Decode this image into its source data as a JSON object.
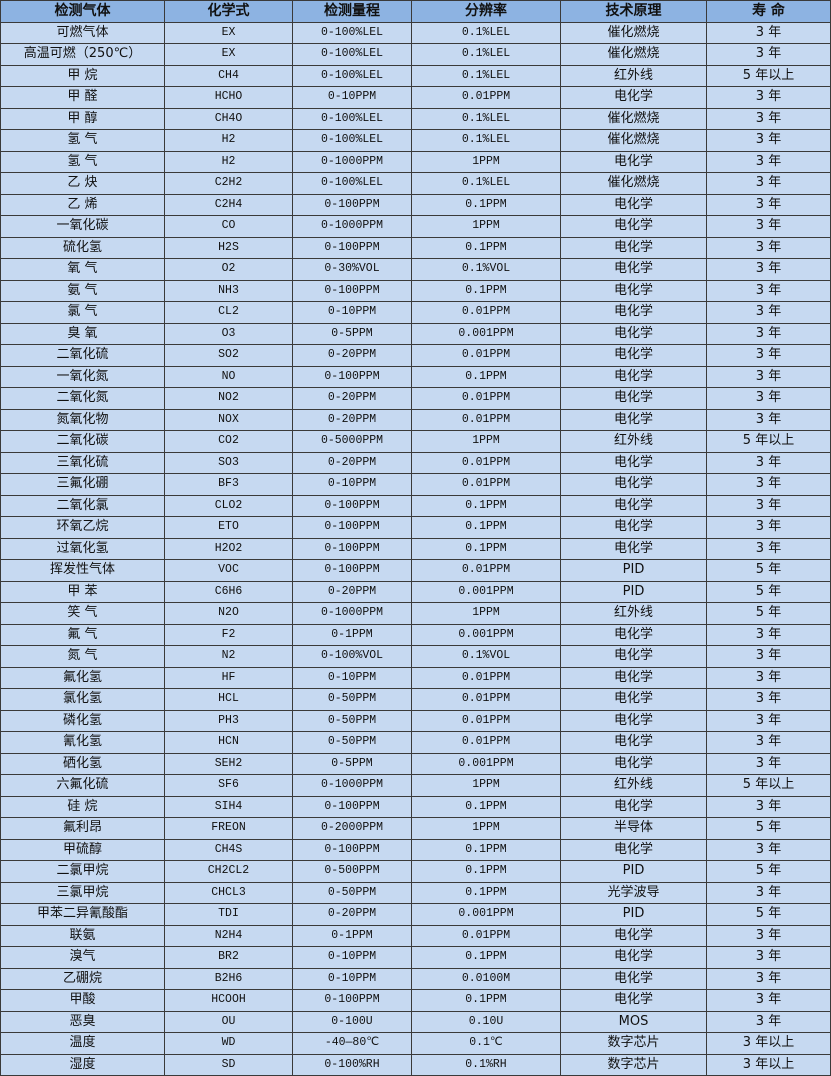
{
  "headers": [
    "检测气体",
    "化学式",
    "检测量程",
    "分辨率",
    "技术原理",
    "寿 命"
  ],
  "rows": [
    [
      "可燃气体",
      "EX",
      "0-100%LEL",
      "0.1%LEL",
      "催化燃烧",
      "3 年"
    ],
    [
      "高温可燃（250℃）",
      "EX",
      "0-100%LEL",
      "0.1%LEL",
      "催化燃烧",
      "3 年"
    ],
    [
      "甲 烷",
      "CH4",
      "0-100%LEL",
      "0.1%LEL",
      "红外线",
      "5 年以上"
    ],
    [
      "甲 醛",
      "HCHO",
      "0-10PPM",
      "0.01PPM",
      "电化学",
      "3 年"
    ],
    [
      "甲 醇",
      "CH4O",
      "0-100%LEL",
      "0.1%LEL",
      "催化燃烧",
      "3 年"
    ],
    [
      "氢 气",
      "H2",
      "0-100%LEL",
      "0.1%LEL",
      "催化燃烧",
      "3 年"
    ],
    [
      "氢 气",
      "H2",
      "0-1000PPM",
      "1PPM",
      "电化学",
      "3 年"
    ],
    [
      "乙 炔",
      "C2H2",
      "0-100%LEL",
      "0.1%LEL",
      "催化燃烧",
      "3 年"
    ],
    [
      "乙 烯",
      "C2H4",
      "0-100PPM",
      "0.1PPM",
      "电化学",
      "3 年"
    ],
    [
      "一氧化碳",
      "CO",
      "0-1000PPM",
      "1PPM",
      "电化学",
      "3 年"
    ],
    [
      "硫化氢",
      "H2S",
      "0-100PPM",
      "0.1PPM",
      "电化学",
      "3 年"
    ],
    [
      "氧 气",
      "O2",
      "0-30%VOL",
      "0.1%VOL",
      "电化学",
      "3 年"
    ],
    [
      "氨 气",
      "NH3",
      "0-100PPM",
      "0.1PPM",
      "电化学",
      "3 年"
    ],
    [
      "氯 气",
      "CL2",
      "0-10PPM",
      "0.01PPM",
      "电化学",
      "3 年"
    ],
    [
      "臭 氧",
      "O3",
      "0-5PPM",
      "0.001PPM",
      "电化学",
      "3 年"
    ],
    [
      "二氧化硫",
      "SO2",
      "0-20PPM",
      "0.01PPM",
      "电化学",
      "3 年"
    ],
    [
      "一氧化氮",
      "NO",
      "0-100PPM",
      "0.1PPM",
      "电化学",
      "3 年"
    ],
    [
      "二氧化氮",
      "NO2",
      "0-20PPM",
      "0.01PPM",
      "电化学",
      "3 年"
    ],
    [
      "氮氧化物",
      "NOX",
      "0-20PPM",
      "0.01PPM",
      "电化学",
      "3 年"
    ],
    [
      "二氧化碳",
      "CO2",
      "0-5000PPM",
      "1PPM",
      "红外线",
      "5 年以上"
    ],
    [
      "三氧化硫",
      "SO3",
      "0-20PPM",
      "0.01PPM",
      "电化学",
      "3 年"
    ],
    [
      "三氟化硼",
      "BF3",
      "0-10PPM",
      "0.01PPM",
      "电化学",
      "3 年"
    ],
    [
      "二氧化氯",
      "CLO2",
      "0-100PPM",
      "0.1PPM",
      "电化学",
      "3 年"
    ],
    [
      "环氧乙烷",
      "ETO",
      "0-100PPM",
      "0.1PPM",
      "电化学",
      "3 年"
    ],
    [
      "过氧化氢",
      "H2O2",
      "0-100PPM",
      "0.1PPM",
      "电化学",
      "3 年"
    ],
    [
      "挥发性气体",
      "VOC",
      "0-100PPM",
      "0.01PPM",
      "PID",
      "5 年"
    ],
    [
      "甲 苯",
      "C6H6",
      "0-20PPM",
      "0.001PPM",
      "PID",
      "5 年"
    ],
    [
      "笑 气",
      "N2O",
      "0-1000PPM",
      "1PPM",
      "红外线",
      "5 年"
    ],
    [
      "氟 气",
      "F2",
      "0-1PPM",
      "0.001PPM",
      "电化学",
      "3 年"
    ],
    [
      "氮 气",
      "N2",
      "0-100%VOL",
      "0.1%VOL",
      "电化学",
      "3 年"
    ],
    [
      "氟化氢",
      "HF",
      "0-10PPM",
      "0.01PPM",
      "电化学",
      "3 年"
    ],
    [
      "氯化氢",
      "HCL",
      "0-50PPM",
      "0.01PPM",
      "电化学",
      "3 年"
    ],
    [
      "磷化氢",
      "PH3",
      "0-50PPM",
      "0.01PPM",
      "电化学",
      "3 年"
    ],
    [
      "氰化氢",
      "HCN",
      "0-50PPM",
      "0.01PPM",
      "电化学",
      "3 年"
    ],
    [
      "硒化氢",
      "SEH2",
      "0-5PPM",
      "0.001PPM",
      "电化学",
      "3 年"
    ],
    [
      "六氟化硫",
      "SF6",
      "0-1000PPM",
      "1PPM",
      "红外线",
      "5 年以上"
    ],
    [
      "硅 烷",
      "SIH4",
      "0-100PPM",
      "0.1PPM",
      "电化学",
      "3 年"
    ],
    [
      "氟利昂",
      "FREON",
      "0-2000PPM",
      "1PPM",
      "半导体",
      "5 年"
    ],
    [
      "甲硫醇",
      "CH4S",
      "0-100PPM",
      "0.1PPM",
      "电化学",
      "3 年"
    ],
    [
      "二氯甲烷",
      "CH2CL2",
      "0-500PPM",
      "0.1PPM",
      "PID",
      "5 年"
    ],
    [
      "三氯甲烷",
      "CHCL3",
      "0-50PPM",
      "0.1PPM",
      "光学波导",
      "3 年"
    ],
    [
      "甲苯二异氰酸酯",
      "TDI",
      "0-20PPM",
      "0.001PPM",
      "PID",
      "5 年"
    ],
    [
      "联氨",
      "N2H4",
      "0-1PPM",
      "0.01PPM",
      "电化学",
      "3 年"
    ],
    [
      "溴气",
      "BR2",
      "0-10PPM",
      "0.1PPM",
      "电化学",
      "3 年"
    ],
    [
      "乙硼烷",
      "B2H6",
      "0-10PPM",
      "0.0100M",
      "电化学",
      "3 年"
    ],
    [
      "甲酸",
      "HCOOH",
      "0-100PPM",
      "0.1PPM",
      "电化学",
      "3 年"
    ],
    [
      "恶臭",
      "OU",
      "0-100U",
      "0.10U",
      "MOS",
      "3 年"
    ],
    [
      "温度",
      "WD",
      "-40—80℃",
      "0.1℃",
      "数字芯片",
      "3 年以上"
    ],
    [
      "湿度",
      "SD",
      "0-100%RH",
      "0.1%RH",
      "数字芯片",
      "3 年以上"
    ]
  ],
  "colors": {
    "header_bg": "#8db3e2",
    "row_bg": "#c6d9f1",
    "border": "#3a3a3a"
  }
}
